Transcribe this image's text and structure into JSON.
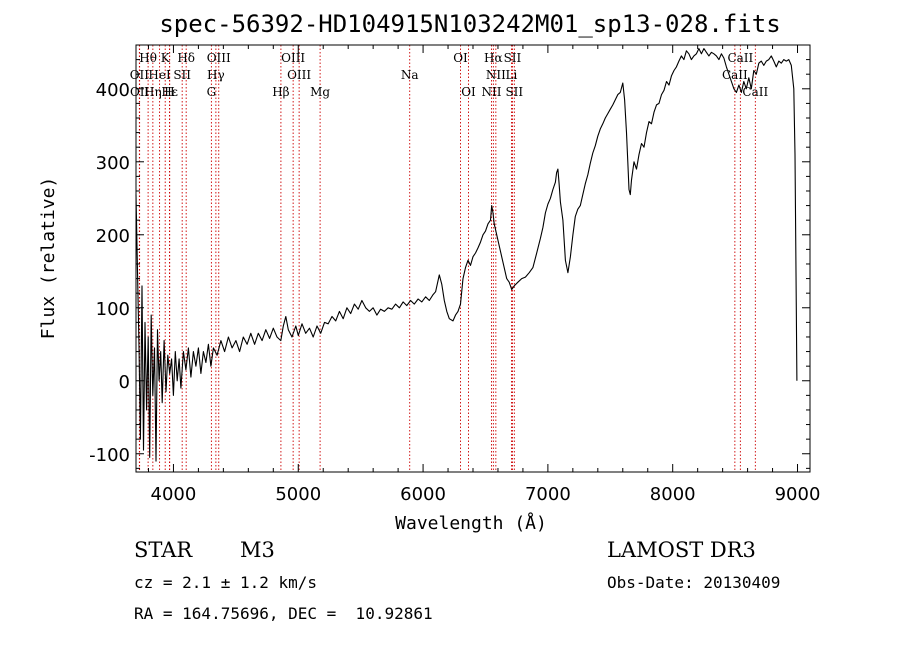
{
  "chart_data": {
    "type": "line",
    "title": "spec-56392-HD104915N103242M01_sp13-028.fits",
    "xlabel": "Wavelength (Å)",
    "ylabel": "Flux (relative)",
    "xlim": [
      3700,
      9100
    ],
    "ylim": [
      -125,
      460
    ],
    "xticks": [
      4000,
      5000,
      6000,
      7000,
      8000,
      9000
    ],
    "yticks": [
      -100,
      0,
      100,
      200,
      300,
      400
    ],
    "line_color": "#000000",
    "marker_color": "#cc0000",
    "series": [
      {
        "name": "flux",
        "points": [
          [
            3700,
            255
          ],
          [
            3712,
            150
          ],
          [
            3725,
            40
          ],
          [
            3735,
            -80
          ],
          [
            3748,
            130
          ],
          [
            3760,
            -95
          ],
          [
            3772,
            80
          ],
          [
            3785,
            -40
          ],
          [
            3798,
            60
          ],
          [
            3810,
            -105
          ],
          [
            3822,
            90
          ],
          [
            3835,
            -20
          ],
          [
            3848,
            45
          ],
          [
            3860,
            -110
          ],
          [
            3872,
            70
          ],
          [
            3885,
            0
          ],
          [
            3898,
            40
          ],
          [
            3910,
            -30
          ],
          [
            3925,
            55
          ],
          [
            3940,
            -15
          ],
          [
            3955,
            35
          ],
          [
            3970,
            10
          ],
          [
            3985,
            30
          ],
          [
            4000,
            -20
          ],
          [
            4015,
            40
          ],
          [
            4030,
            0
          ],
          [
            4045,
            30
          ],
          [
            4060,
            -10
          ],
          [
            4080,
            40
          ],
          [
            4100,
            15
          ],
          [
            4120,
            45
          ],
          [
            4140,
            5
          ],
          [
            4160,
            40
          ],
          [
            4180,
            20
          ],
          [
            4200,
            45
          ],
          [
            4220,
            10
          ],
          [
            4240,
            40
          ],
          [
            4260,
            25
          ],
          [
            4280,
            50
          ],
          [
            4300,
            20
          ],
          [
            4320,
            45
          ],
          [
            4350,
            35
          ],
          [
            4380,
            55
          ],
          [
            4410,
            40
          ],
          [
            4440,
            60
          ],
          [
            4470,
            45
          ],
          [
            4500,
            55
          ],
          [
            4530,
            40
          ],
          [
            4560,
            60
          ],
          [
            4590,
            50
          ],
          [
            4620,
            65
          ],
          [
            4650,
            50
          ],
          [
            4680,
            65
          ],
          [
            4710,
            55
          ],
          [
            4740,
            70
          ],
          [
            4770,
            58
          ],
          [
            4800,
            72
          ],
          [
            4830,
            60
          ],
          [
            4860,
            55
          ],
          [
            4880,
            75
          ],
          [
            4900,
            88
          ],
          [
            4920,
            70
          ],
          [
            4950,
            60
          ],
          [
            4980,
            75
          ],
          [
            5000,
            62
          ],
          [
            5030,
            78
          ],
          [
            5060,
            65
          ],
          [
            5090,
            72
          ],
          [
            5120,
            60
          ],
          [
            5150,
            75
          ],
          [
            5180,
            65
          ],
          [
            5210,
            80
          ],
          [
            5240,
            78
          ],
          [
            5270,
            88
          ],
          [
            5300,
            82
          ],
          [
            5330,
            95
          ],
          [
            5360,
            85
          ],
          [
            5390,
            100
          ],
          [
            5420,
            92
          ],
          [
            5450,
            105
          ],
          [
            5480,
            98
          ],
          [
            5510,
            110
          ],
          [
            5540,
            100
          ],
          [
            5570,
            95
          ],
          [
            5600,
            100
          ],
          [
            5630,
            90
          ],
          [
            5660,
            98
          ],
          [
            5690,
            95
          ],
          [
            5720,
            100
          ],
          [
            5750,
            98
          ],
          [
            5780,
            105
          ],
          [
            5810,
            100
          ],
          [
            5840,
            108
          ],
          [
            5870,
            103
          ],
          [
            5900,
            110
          ],
          [
            5930,
            105
          ],
          [
            5960,
            112
          ],
          [
            5990,
            108
          ],
          [
            6020,
            115
          ],
          [
            6050,
            110
          ],
          [
            6080,
            118
          ],
          [
            6100,
            122
          ],
          [
            6130,
            145
          ],
          [
            6150,
            132
          ],
          [
            6170,
            110
          ],
          [
            6190,
            95
          ],
          [
            6210,
            85
          ],
          [
            6240,
            82
          ],
          [
            6260,
            90
          ],
          [
            6280,
            95
          ],
          [
            6300,
            105
          ],
          [
            6320,
            140
          ],
          [
            6340,
            155
          ],
          [
            6360,
            165
          ],
          [
            6380,
            158
          ],
          [
            6400,
            170
          ],
          [
            6420,
            175
          ],
          [
            6440,
            182
          ],
          [
            6460,
            190
          ],
          [
            6480,
            200
          ],
          [
            6500,
            205
          ],
          [
            6520,
            215
          ],
          [
            6540,
            220
          ],
          [
            6550,
            240
          ],
          [
            6560,
            230
          ],
          [
            6570,
            215
          ],
          [
            6590,
            200
          ],
          [
            6610,
            185
          ],
          [
            6630,
            170
          ],
          [
            6650,
            155
          ],
          [
            6670,
            140
          ],
          [
            6690,
            135
          ],
          [
            6710,
            125
          ],
          [
            6730,
            130
          ],
          [
            6760,
            135
          ],
          [
            6790,
            140
          ],
          [
            6820,
            142
          ],
          [
            6850,
            148
          ],
          [
            6880,
            155
          ],
          [
            6910,
            175
          ],
          [
            6940,
            195
          ],
          [
            6960,
            210
          ],
          [
            6980,
            230
          ],
          [
            7000,
            242
          ],
          [
            7020,
            250
          ],
          [
            7040,
            262
          ],
          [
            7060,
            272
          ],
          [
            7070,
            285
          ],
          [
            7080,
            290
          ],
          [
            7090,
            270
          ],
          [
            7100,
            245
          ],
          [
            7120,
            220
          ],
          [
            7140,
            165
          ],
          [
            7160,
            148
          ],
          [
            7180,
            170
          ],
          [
            7200,
            200
          ],
          [
            7220,
            225
          ],
          [
            7240,
            235
          ],
          [
            7260,
            240
          ],
          [
            7280,
            255
          ],
          [
            7300,
            270
          ],
          [
            7320,
            282
          ],
          [
            7340,
            298
          ],
          [
            7360,
            312
          ],
          [
            7380,
            322
          ],
          [
            7400,
            335
          ],
          [
            7420,
            345
          ],
          [
            7440,
            352
          ],
          [
            7460,
            360
          ],
          [
            7480,
            366
          ],
          [
            7500,
            372
          ],
          [
            7520,
            378
          ],
          [
            7540,
            385
          ],
          [
            7560,
            392
          ],
          [
            7580,
            395
          ],
          [
            7600,
            408
          ],
          [
            7615,
            385
          ],
          [
            7630,
            340
          ],
          [
            7640,
            300
          ],
          [
            7650,
            262
          ],
          [
            7660,
            255
          ],
          [
            7670,
            275
          ],
          [
            7690,
            300
          ],
          [
            7710,
            290
          ],
          [
            7730,
            310
          ],
          [
            7750,
            325
          ],
          [
            7770,
            320
          ],
          [
            7790,
            340
          ],
          [
            7810,
            355
          ],
          [
            7830,
            352
          ],
          [
            7850,
            368
          ],
          [
            7870,
            378
          ],
          [
            7890,
            380
          ],
          [
            7910,
            392
          ],
          [
            7930,
            398
          ],
          [
            7950,
            410
          ],
          [
            7970,
            405
          ],
          [
            7990,
            418
          ],
          [
            8010,
            425
          ],
          [
            8030,
            430
          ],
          [
            8050,
            438
          ],
          [
            8070,
            445
          ],
          [
            8090,
            440
          ],
          [
            8110,
            452
          ],
          [
            8130,
            448
          ],
          [
            8150,
            440
          ],
          [
            8170,
            445
          ],
          [
            8190,
            448
          ],
          [
            8210,
            455
          ],
          [
            8230,
            448
          ],
          [
            8250,
            455
          ],
          [
            8270,
            450
          ],
          [
            8290,
            445
          ],
          [
            8310,
            450
          ],
          [
            8330,
            448
          ],
          [
            8350,
            445
          ],
          [
            8370,
            440
          ],
          [
            8390,
            448
          ],
          [
            8410,
            442
          ],
          [
            8430,
            430
          ],
          [
            8450,
            420
          ],
          [
            8470,
            410
          ],
          [
            8490,
            400
          ],
          [
            8510,
            395
          ],
          [
            8530,
            405
          ],
          [
            8550,
            395
          ],
          [
            8570,
            410
          ],
          [
            8590,
            400
          ],
          [
            8610,
            415
          ],
          [
            8630,
            400
          ],
          [
            8650,
            425
          ],
          [
            8670,
            420
          ],
          [
            8690,
            435
          ],
          [
            8710,
            438
          ],
          [
            8730,
            432
          ],
          [
            8750,
            438
          ],
          [
            8770,
            440
          ],
          [
            8790,
            445
          ],
          [
            8810,
            438
          ],
          [
            8830,
            430
          ],
          [
            8850,
            438
          ],
          [
            8870,
            435
          ],
          [
            8890,
            440
          ],
          [
            8910,
            438
          ],
          [
            8930,
            440
          ],
          [
            8950,
            432
          ],
          [
            8970,
            400
          ],
          [
            8980,
            310
          ],
          [
            8990,
            100
          ],
          [
            8995,
            0
          ]
        ]
      }
    ],
    "lines": [
      {
        "label": "Hθ",
        "x": 3797,
        "row": 0
      },
      {
        "label": "K",
        "x": 3934,
        "row": 0
      },
      {
        "label": "Hδ",
        "x": 4102,
        "row": 0
      },
      {
        "label": "OIII",
        "x": 4363,
        "row": 0
      },
      {
        "label": "OIII",
        "x": 4959,
        "row": 0
      },
      {
        "label": "OI",
        "x": 6300,
        "row": 0
      },
      {
        "label": "Hα",
        "x": 6563,
        "row": 0
      },
      {
        "label": "SII",
        "x": 6716,
        "row": 0
      },
      {
        "label": "CaII",
        "x": 8542,
        "row": 0
      },
      {
        "label": "OII",
        "x": 3727,
        "row": 1
      },
      {
        "label": "HeI",
        "x": 3889,
        "row": 1
      },
      {
        "label": "SII",
        "x": 4070,
        "row": 1
      },
      {
        "label": "Hγ",
        "x": 4340,
        "row": 1
      },
      {
        "label": "OIII",
        "x": 5007,
        "row": 1
      },
      {
        "label": "Na",
        "x": 5893,
        "row": 1
      },
      {
        "label": "NII",
        "x": 6583,
        "row": 1
      },
      {
        "label": "Li",
        "x": 6708,
        "row": 1
      },
      {
        "label": "CaII",
        "x": 8498,
        "row": 1
      },
      {
        "label": "OII",
        "x": 3729,
        "row": 2
      },
      {
        "label": "Hε",
        "x": 3970,
        "row": 2
      },
      {
        "label": "Hη",
        "x": 3835,
        "row": 2
      },
      {
        "label": "H",
        "x": 3968,
        "row": 2
      },
      {
        "label": "G",
        "x": 4304,
        "row": 2
      },
      {
        "label": "Hβ",
        "x": 4861,
        "row": 2
      },
      {
        "label": "Mg",
        "x": 5175,
        "row": 2
      },
      {
        "label": "OI",
        "x": 6364,
        "row": 2
      },
      {
        "label": "NII",
        "x": 6548,
        "row": 2
      },
      {
        "label": "SII",
        "x": 6731,
        "row": 2
      },
      {
        "label": "CaII",
        "x": 8662,
        "row": 2
      }
    ]
  },
  "info": {
    "object_class": "STAR",
    "subclass": "M3",
    "cz": "cz = 2.1 ± 1.2 km/s",
    "radec": "RA = 164.75696, DEC =  10.92861",
    "survey": "LAMOST DR3",
    "obs_date": "Obs-Date: 20130409"
  }
}
